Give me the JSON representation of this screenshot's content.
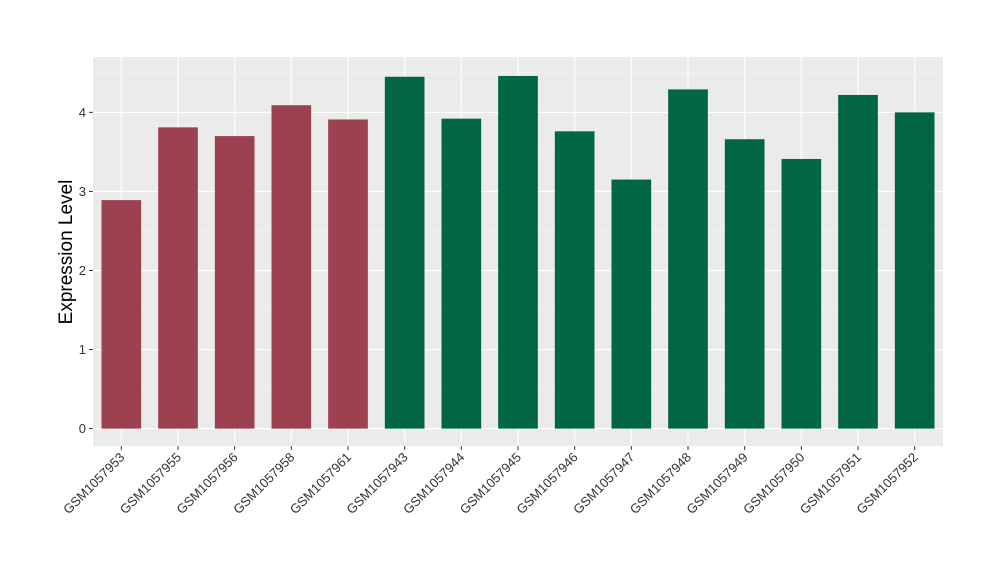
{
  "chart_data": {
    "type": "bar",
    "ylabel": "Expression Level",
    "xlabel": "",
    "ylim": [
      -0.22,
      4.7
    ],
    "yticks": [
      0,
      1,
      2,
      3,
      4
    ],
    "grid": true,
    "background": "#ebebeb",
    "categories": [
      "GSM1057953",
      "GSM1057955",
      "GSM1057956",
      "GSM1057958",
      "GSM1057961",
      "GSM1057943",
      "GSM1057944",
      "GSM1057945",
      "GSM1057946",
      "GSM1057947",
      "GSM1057948",
      "GSM1057949",
      "GSM1057950",
      "GSM1057951",
      "GSM1057952"
    ],
    "values": [
      2.89,
      3.81,
      3.7,
      4.09,
      3.91,
      4.45,
      3.92,
      4.46,
      3.76,
      3.15,
      4.29,
      3.66,
      3.41,
      4.22,
      4.0
    ],
    "group_colors": [
      "#9b4150",
      "#9b4150",
      "#9b4150",
      "#9b4150",
      "#9b4150",
      "#006644",
      "#006644",
      "#006644",
      "#006644",
      "#006644",
      "#006644",
      "#006644",
      "#006644",
      "#006644",
      "#006644"
    ]
  }
}
